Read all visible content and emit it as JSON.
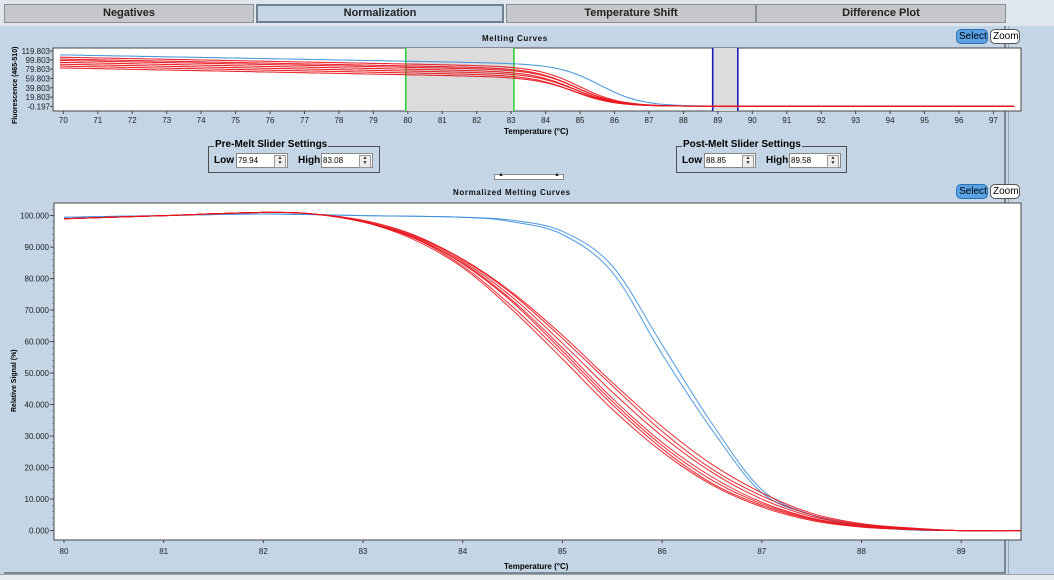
{
  "tabs": [
    {
      "label": "Negatives",
      "active": false
    },
    {
      "label": "Normalization",
      "active": true
    },
    {
      "label": "Temperature Shift",
      "active": false
    },
    {
      "label": "Difference Plot",
      "active": false
    }
  ],
  "toolbar": {
    "select_label": "Select",
    "zoom_label": "Zoom"
  },
  "colors": {
    "red_curve": "#e8141c",
    "blue_curve": "#3d8fdc",
    "pre_melt_line": "#2fd13a",
    "post_melt_line": "#1a1ab8",
    "selection_fill": "#dcdcdc",
    "select_button": "#5aa2e6"
  },
  "pre_melt": {
    "title": "Pre-Melt Slider Settings",
    "low_label": "Low",
    "low_value": "79.94",
    "high_label": "High",
    "high_value": "83.08"
  },
  "post_melt": {
    "title": "Post-Melt Slider Settings",
    "low_label": "Low",
    "low_value": "88.85",
    "high_label": "High",
    "high_value": "89.58"
  },
  "chart_data": [
    {
      "type": "line",
      "title": "Melting Curves",
      "xlabel": "Temperature (°C)",
      "ylabel": "Fluorescence (465-510)",
      "xlim": [
        69.7,
        97.8
      ],
      "ylim": [
        -10,
        125
      ],
      "xticks": [
        70,
        71,
        72,
        73,
        74,
        75,
        76,
        77,
        78,
        79,
        80,
        81,
        82,
        83,
        84,
        85,
        86,
        87,
        88,
        89,
        90,
        91,
        92,
        93,
        94,
        95,
        96,
        97
      ],
      "yticks": [
        "119.803",
        "99.803",
        "79.803",
        "59.803",
        "39.803",
        "19.803",
        "-0.197"
      ],
      "ytick_values": [
        119.803,
        99.803,
        79.803,
        59.803,
        39.803,
        19.803,
        -0.197
      ],
      "regions": [
        {
          "name": "pre-melt",
          "from": 79.94,
          "to": 83.08
        },
        {
          "name": "post-melt",
          "from": 88.85,
          "to": 89.58
        }
      ],
      "series": [
        {
          "name": "blue-1",
          "color": "blue",
          "start": 110,
          "mid_drop": 85.3,
          "tm": 85.6
        },
        {
          "name": "red-1",
          "color": "red",
          "start": 105,
          "tm": 85.0
        },
        {
          "name": "red-2",
          "color": "red",
          "start": 101,
          "tm": 84.9
        },
        {
          "name": "red-3",
          "color": "red",
          "start": 98,
          "tm": 84.95
        },
        {
          "name": "red-4",
          "color": "red",
          "start": 94,
          "tm": 84.85
        },
        {
          "name": "red-5",
          "color": "red",
          "start": 90,
          "tm": 84.9
        },
        {
          "name": "red-6",
          "color": "red",
          "start": 86,
          "tm": 84.8
        },
        {
          "name": "red-7",
          "color": "red",
          "start": 82,
          "tm": 84.9
        }
      ]
    },
    {
      "type": "line",
      "title": "Normalized Melting Curves",
      "xlabel": "Temperature (°C)",
      "ylabel": "Relative Signal (%)",
      "xlim": [
        79.9,
        89.6
      ],
      "ylim": [
        -3,
        104
      ],
      "xticks": [
        80,
        81,
        82,
        83,
        84,
        85,
        86,
        87,
        88,
        89
      ],
      "yticks": [
        "100.000",
        "90.000",
        "80.000",
        "70.000",
        "60.000",
        "50.000",
        "40.000",
        "30.000",
        "20.000",
        "10.000",
        "0.000"
      ],
      "ytick_values": [
        100,
        90,
        80,
        70,
        60,
        50,
        40,
        30,
        20,
        10,
        0
      ],
      "series": [
        {
          "name": "blue-1",
          "color": "blue",
          "tm": 86.05,
          "width": 0.55,
          "x": [
            80,
            81,
            82,
            83,
            84,
            84.5,
            85,
            85.5,
            86,
            86.5,
            87,
            87.5,
            88,
            88.5,
            89
          ],
          "y": [
            99.5,
            100,
            100.5,
            100,
            99.5,
            98,
            94,
            82,
            56,
            32,
            12,
            5,
            1.5,
            0.2,
            0
          ]
        },
        {
          "name": "blue-2",
          "color": "blue",
          "tm": 86.15,
          "width": 0.55,
          "x": [
            80,
            81,
            82,
            83,
            84,
            84.5,
            85,
            85.5,
            86,
            86.5,
            87,
            87.5,
            88,
            88.5,
            89
          ],
          "y": [
            99.5,
            100,
            100.5,
            100,
            99.5,
            98.5,
            95,
            84,
            59,
            34,
            13,
            5,
            1.5,
            0.2,
            0
          ]
        },
        {
          "name": "red-1",
          "color": "red",
          "x": [
            80,
            81,
            82,
            82.5,
            83,
            83.5,
            84,
            84.5,
            85,
            85.5,
            86,
            86.5,
            87,
            87.5,
            88,
            88.5,
            89,
            89.6
          ],
          "y": [
            99,
            100,
            101,
            100.5,
            98,
            93,
            85,
            73,
            58,
            42,
            28,
            17,
            9,
            4,
            1.5,
            0.5,
            0,
            0
          ]
        },
        {
          "name": "red-2",
          "color": "red",
          "x": [
            80,
            81,
            82,
            82.5,
            83,
            83.5,
            84,
            84.5,
            85,
            85.5,
            86,
            86.5,
            87,
            87.5,
            88,
            88.5,
            89,
            89.6
          ],
          "y": [
            99,
            100,
            101,
            100.5,
            98,
            93,
            84,
            71,
            56,
            40,
            26,
            15,
            8,
            3.5,
            1.2,
            0.4,
            0,
            0
          ]
        },
        {
          "name": "red-3",
          "color": "red",
          "x": [
            80,
            81,
            82,
            82.5,
            83,
            83.5,
            84,
            84.5,
            85,
            85.5,
            86,
            86.5,
            87,
            87.5,
            88,
            88.5,
            89,
            89.6
          ],
          "y": [
            99,
            100,
            101,
            100.5,
            98,
            93.5,
            85.5,
            74,
            59.5,
            44,
            30,
            18.5,
            10,
            4.5,
            1.8,
            0.6,
            0,
            0
          ]
        },
        {
          "name": "red-4",
          "color": "red",
          "x": [
            80,
            81,
            82,
            82.5,
            83,
            83.5,
            84,
            84.5,
            85,
            85.5,
            86,
            86.5,
            87,
            87.5,
            88,
            88.5,
            89,
            89.6
          ],
          "y": [
            99,
            100,
            101,
            100.5,
            98.5,
            94,
            86,
            75,
            61,
            46,
            31.5,
            19.5,
            11,
            5,
            2,
            0.7,
            0,
            0
          ]
        },
        {
          "name": "red-5",
          "color": "red",
          "x": [
            80,
            81,
            82,
            82.5,
            83,
            83.5,
            84,
            84.5,
            85,
            85.5,
            86,
            86.5,
            87,
            87.5,
            88,
            88.5,
            89,
            89.6
          ],
          "y": [
            99,
            100,
            101,
            100.5,
            98,
            92.5,
            83.5,
            70,
            54.5,
            38.5,
            25,
            14.5,
            7.5,
            3.2,
            1.1,
            0.3,
            0,
            0
          ]
        },
        {
          "name": "red-6",
          "color": "red",
          "x": [
            80,
            81,
            82,
            82.5,
            83,
            83.5,
            84,
            84.5,
            85,
            85.5,
            86,
            86.5,
            87,
            87.5,
            88,
            88.5,
            89,
            89.6
          ],
          "y": [
            99,
            100,
            101,
            100.5,
            98.3,
            93.8,
            86.2,
            75.5,
            62,
            47,
            33,
            21,
            12,
            5.5,
            2.2,
            0.8,
            0,
            0
          ]
        },
        {
          "name": "red-7",
          "color": "red",
          "x": [
            80,
            81,
            82,
            82.5,
            83,
            83.5,
            84,
            84.5,
            85,
            85.5,
            86,
            86.5,
            87,
            87.5,
            88,
            88.5,
            89,
            89.6
          ],
          "y": [
            99,
            100,
            101,
            100.5,
            98.1,
            93.2,
            84.7,
            72.5,
            57,
            41,
            27,
            16,
            8.5,
            3.8,
            1.4,
            0.5,
            0,
            0
          ]
        }
      ]
    }
  ]
}
